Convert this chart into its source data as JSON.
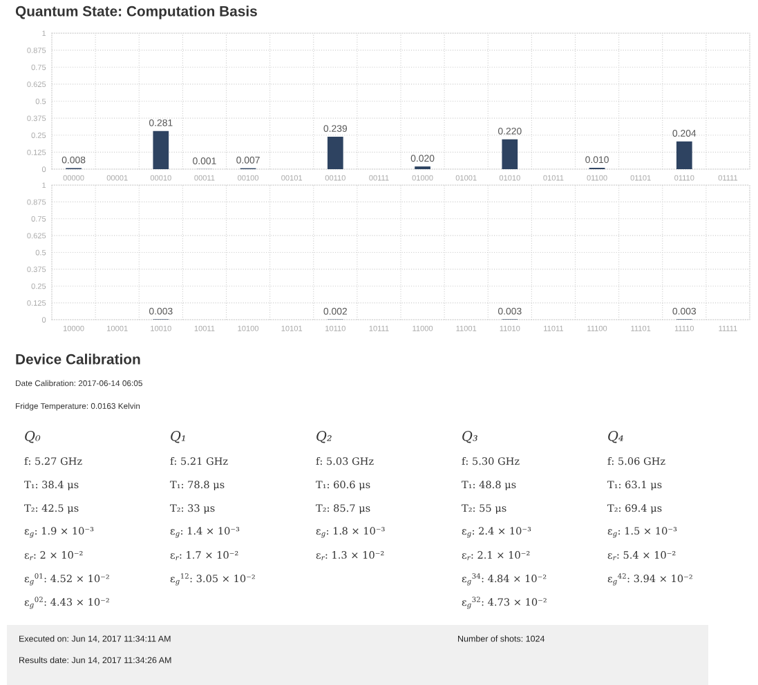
{
  "chart_data": [
    {
      "type": "bar",
      "title": "Quantum State: Computation Basis",
      "categories": [
        "00000",
        "00001",
        "00010",
        "00011",
        "00100",
        "00101",
        "00110",
        "00111",
        "01000",
        "01001",
        "01010",
        "01011",
        "01100",
        "01101",
        "01110",
        "01111"
      ],
      "values": [
        0.008,
        0,
        0.281,
        0.001,
        0.007,
        0,
        0.239,
        0,
        0.02,
        0,
        0.22,
        0,
        0.01,
        0,
        0.204,
        0
      ],
      "value_labels": [
        "0.008",
        null,
        "0.281",
        "0.001",
        "0.007",
        null,
        "0.239",
        null,
        "0.020",
        null,
        "0.220",
        null,
        "0.010",
        null,
        "0.204",
        null
      ],
      "color": "#2e4361",
      "ylim": [
        0,
        1
      ],
      "yticks": [
        0,
        0.125,
        0.25,
        0.375,
        0.5,
        0.625,
        0.75,
        0.875,
        1
      ],
      "grid": true
    },
    {
      "type": "bar",
      "categories": [
        "10000",
        "10001",
        "10010",
        "10011",
        "10100",
        "10101",
        "10110",
        "10111",
        "11000",
        "11001",
        "11010",
        "11011",
        "11100",
        "11101",
        "11110",
        "11111"
      ],
      "values": [
        0,
        0,
        0.003,
        0,
        0,
        0,
        0.002,
        0,
        0,
        0,
        0.003,
        0,
        0,
        0,
        0.003,
        0
      ],
      "value_labels": [
        null,
        null,
        "0.003",
        null,
        null,
        null,
        "0.002",
        null,
        null,
        null,
        "0.003",
        null,
        null,
        null,
        "0.003",
        null
      ],
      "color": "#2e4361",
      "ylim": [
        0,
        1
      ],
      "yticks": [
        0,
        0.125,
        0.25,
        0.375,
        0.5,
        0.625,
        0.75,
        0.875,
        1
      ],
      "grid": true
    },
    {
      "type": "other",
      "title": "Device Calibration",
      "annotations": [
        "Date Calibration: 2017-06-14 06:05",
        "Fridge Temperature: 0.0163 Kelvin"
      ]
    },
    {
      "type": "other",
      "title": "Q₀",
      "annotations": [
        "f: 5.27 GHz",
        "T₁: 38.4 μs",
        "T₂: 42.5 μs",
        "ε$_{g}$: 1.9 × 10⁻³",
        "ε$_{r}$: 2 × 10⁻²",
        "ε$_{g}$$^{01}$: 4.52 × 10⁻²",
        "ε$_{g}$$^{02}$: 4.43 × 10⁻²"
      ]
    },
    {
      "type": "other",
      "title": "Q₁",
      "annotations": [
        "f: 5.21 GHz",
        "T₁: 78.8 μs",
        "T₂: 33 μs",
        "ε$_{g}$: 1.4 × 10⁻³",
        "ε$_{r}$: 1.7 × 10⁻²",
        "ε$_{g}$$^{12}$: 3.05 × 10⁻²"
      ]
    },
    {
      "type": "other",
      "title": "Q₂",
      "annotations": [
        "f: 5.03 GHz",
        "T₁: 60.6 μs",
        "T₂: 85.7 μs",
        "ε$_{g}$: 1.8 × 10⁻³",
        "ε$_{r}$: 1.3 × 10⁻²"
      ]
    },
    {
      "type": "other",
      "title": "Q₃",
      "annotations": [
        "f: 5.30 GHz",
        "T₁: 48.8 μs",
        "T₂: 55 μs",
        "ε$_{g}$: 2.4 × 10⁻³",
        "ε$_{r}$: 2.1 × 10⁻²",
        "ε$_{g}$$^{34}$: 4.84 × 10⁻²",
        "ε$_{g}$$^{32}$: 4.73 × 10⁻²"
      ]
    },
    {
      "type": "other",
      "title": "Q₄",
      "annotations": [
        "f: 5.06 GHz",
        "T₁: 63.1 μs",
        "T₂: 69.4 μs",
        "ε$_{g}$: 1.5 × 10⁻³",
        "ε$_{r}$: 5.4 × 10⁻²",
        "ε$_{g}$$^{42}$: 3.94 × 10⁻²"
      ]
    },
    {
      "type": "other",
      "annotations": [
        "Executed on: Jun 14, 2017 11:34:11 AM",
        "Number of shots: 1024",
        "Results date: Jun 14, 2017 11:34:26 AM"
      ]
    }
  ]
}
